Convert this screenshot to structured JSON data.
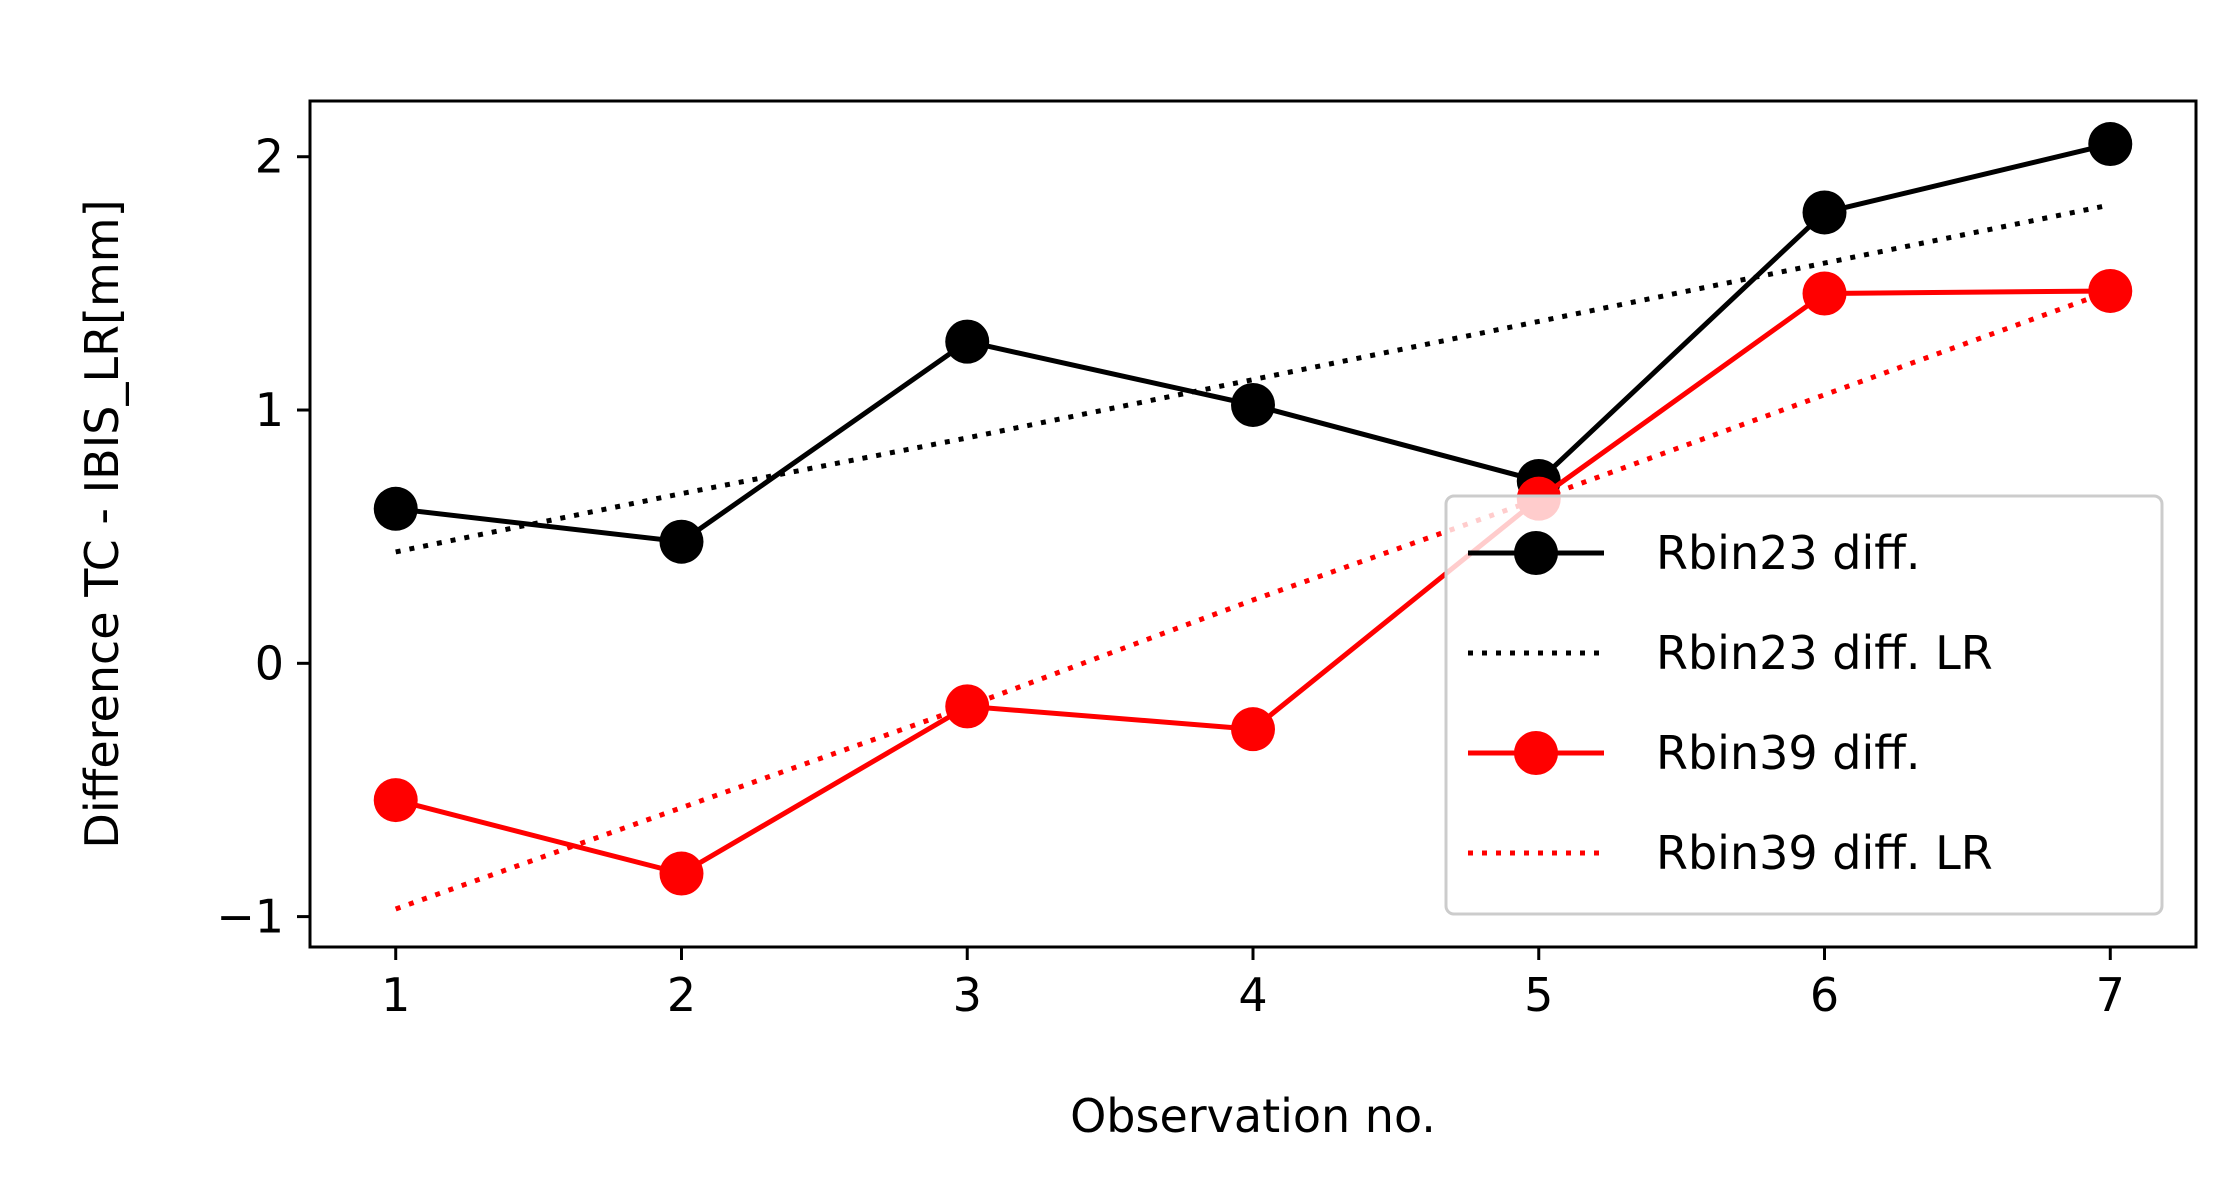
{
  "chart_data": {
    "type": "line",
    "title": "",
    "xlabel": "Observation no.",
    "ylabel": "Difference TC - IBIS_LR[mm]",
    "xlim": [
      0.7,
      7.3
    ],
    "ylim": [
      -1.12,
      2.22
    ],
    "xticks": [
      1,
      2,
      3,
      4,
      5,
      6,
      7
    ],
    "xtick_labels": [
      "1",
      "2",
      "3",
      "4",
      "5",
      "6",
      "7"
    ],
    "yticks": [
      -1,
      0,
      1,
      2
    ],
    "ytick_labels": [
      "−1",
      "0",
      "1",
      "2"
    ],
    "grid": false,
    "legend_position": "center-right",
    "x": [
      1,
      2,
      3,
      4,
      5,
      6,
      7
    ],
    "series": [
      {
        "name": "Rbin23 diff.",
        "values": [
          0.61,
          0.48,
          1.27,
          1.02,
          0.72,
          1.78,
          2.05
        ],
        "color": "#000000",
        "style": "solid",
        "marker": "circle"
      },
      {
        "name": "Rbin23 diff. LR",
        "values": [
          0.44,
          0.67,
          0.89,
          1.12,
          1.35,
          1.58,
          1.81
        ],
        "color": "#000000",
        "style": "dotted",
        "marker": "none"
      },
      {
        "name": "Rbin39 diff.",
        "values": [
          -0.54,
          -0.83,
          -0.17,
          -0.26,
          0.65,
          1.46,
          1.47
        ],
        "color": "#ff0000",
        "style": "solid",
        "marker": "circle"
      },
      {
        "name": "Rbin39 diff. LR",
        "values": [
          -0.97,
          -0.57,
          -0.17,
          0.25,
          0.65,
          1.06,
          1.47
        ],
        "color": "#ff0000",
        "style": "dotted",
        "marker": "none"
      }
    ]
  }
}
